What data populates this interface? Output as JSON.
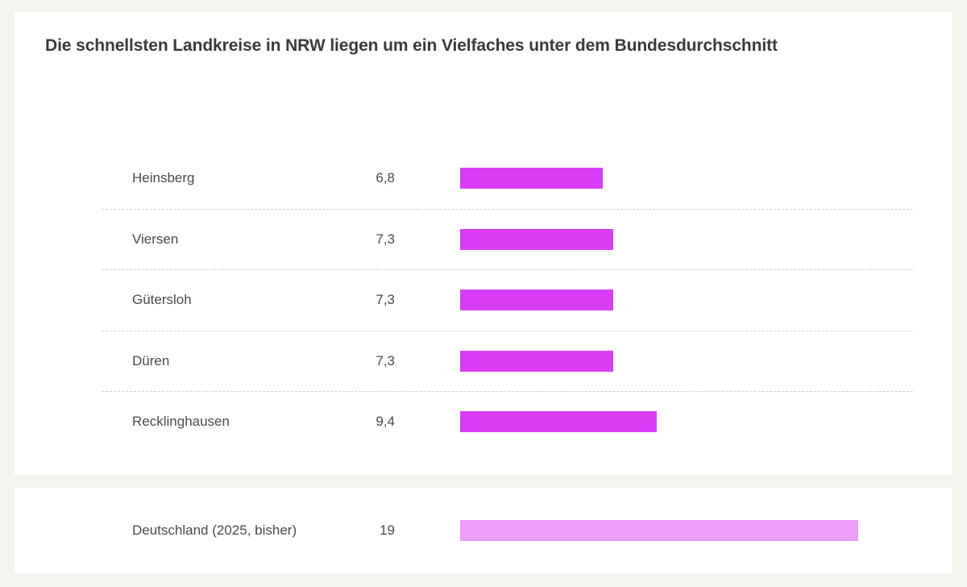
{
  "chart_data": {
    "type": "bar",
    "orientation": "horizontal",
    "title": "Die schnellsten Landkreise in NRW liegen um ein Vielfaches unter dem Bundesdurchschnitt",
    "categories": [
      "Heinsberg",
      "Viersen",
      "Gütersloh",
      "Düren",
      "Recklinghausen"
    ],
    "values": [
      6.8,
      7.3,
      7.3,
      7.3,
      9.4
    ],
    "value_labels": [
      "6,8",
      "7,3",
      "7,3",
      "7,3",
      "9,4"
    ],
    "comparison": {
      "category": "Deutschland (2025, bisher)",
      "value": 19,
      "value_label": "19"
    },
    "xlim": [
      0,
      20
    ],
    "grid": false,
    "legend": "none",
    "colors": {
      "bar": "#d83ef5",
      "comparison_bar": "#ec9ef8",
      "text": "#4a4a4a",
      "title": "#3a3a3a"
    }
  }
}
